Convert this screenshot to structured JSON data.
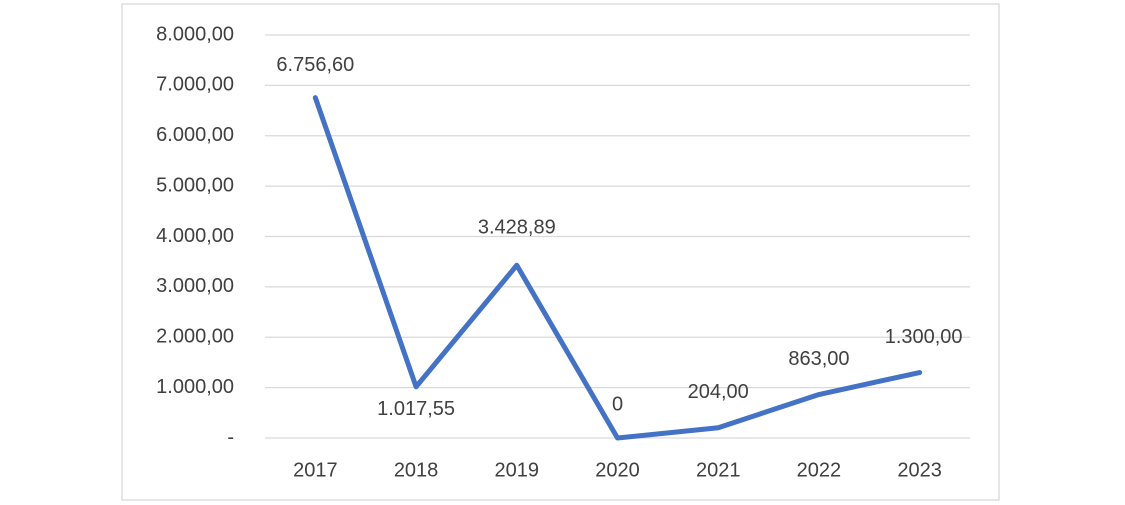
{
  "chart_data": {
    "type": "line",
    "categories": [
      "2017",
      "2018",
      "2019",
      "2020",
      "2021",
      "2022",
      "2023"
    ],
    "values": [
      6756.6,
      1017.55,
      3428.89,
      0,
      204,
      863,
      1300
    ],
    "value_labels": [
      "6.756,60",
      "1.017,55",
      "3.428,89",
      "0",
      "204,00",
      "863,00",
      "1.300,00"
    ],
    "color": "#4472c4",
    "ylim": [
      0,
      8000
    ],
    "yticks": [
      {
        "value": 0,
        "label": "-"
      },
      {
        "value": 1000,
        "label": "1.000,00"
      },
      {
        "value": 2000,
        "label": "2.000,00"
      },
      {
        "value": 3000,
        "label": "3.000,00"
      },
      {
        "value": 4000,
        "label": "4.000,00"
      },
      {
        "value": 5000,
        "label": "5.000,00"
      },
      {
        "value": 6000,
        "label": "6.000,00"
      },
      {
        "value": 7000,
        "label": "7.000,00"
      },
      {
        "value": 8000,
        "label": "8.000,00"
      }
    ],
    "grid": true
  }
}
